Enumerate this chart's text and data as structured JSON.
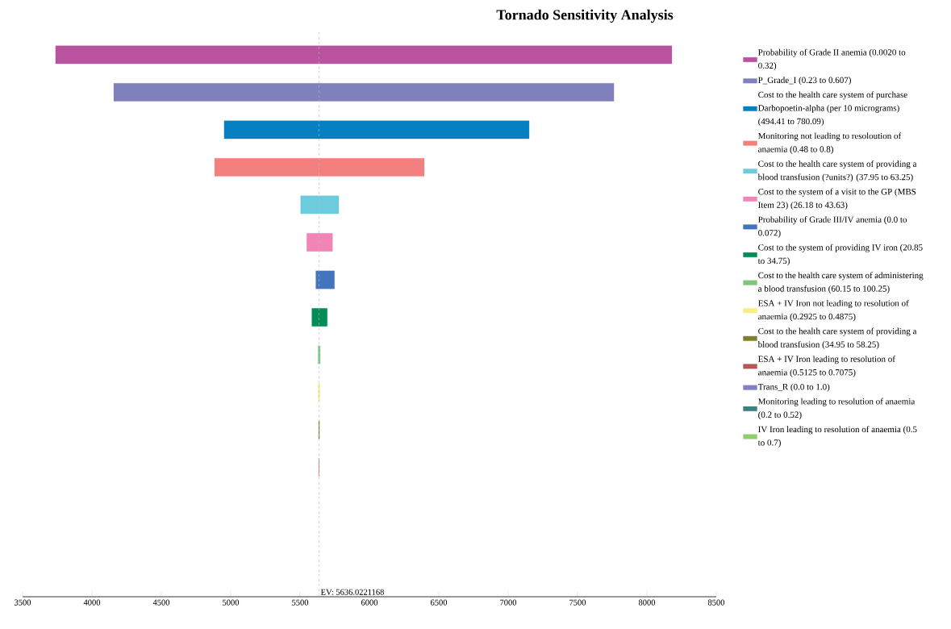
{
  "chart_data": {
    "type": "bar",
    "orientation": "horizontal",
    "title": "Tornado Sensitivity Analysis",
    "categories": [
      null,
      null,
      null,
      null,
      null,
      null,
      null,
      null,
      null,
      null,
      null,
      null,
      null,
      null,
      null
    ],
    "series": [
      {
        "name": "Probability of Grade II anemia (0.0020 to 0.32)",
        "color": "#b9529f",
        "base": [
          3738,
          null,
          null,
          null,
          null,
          null,
          null,
          null,
          null,
          null,
          null,
          null,
          null,
          null,
          null
        ],
        "values": [
          4442,
          null,
          null,
          null,
          null,
          null,
          null,
          null,
          null,
          null,
          null,
          null,
          null,
          null,
          null
        ]
      },
      {
        "name": "P_Grade_I (0.23 to 0.607)",
        "color": "#8080bd",
        "base": [
          null,
          4157,
          null,
          null,
          null,
          null,
          null,
          null,
          null,
          null,
          null,
          null,
          null,
          null,
          null
        ],
        "values": [
          null,
          3605,
          null,
          null,
          null,
          null,
          null,
          null,
          null,
          null,
          null,
          null,
          null,
          null,
          null
        ]
      },
      {
        "name": "Cost to the health care system of purchase Darbopoetin-alpha (per 10 micrograms) (494.41 to 780.09)",
        "color": "#0780c1",
        "base": [
          null,
          null,
          4953,
          null,
          null,
          null,
          null,
          null,
          null,
          null,
          null,
          null,
          null,
          null,
          null
        ],
        "values": [
          null,
          null,
          2198,
          null,
          null,
          null,
          null,
          null,
          null,
          null,
          null,
          null,
          null,
          null,
          null
        ]
      },
      {
        "name": "Monitoring not leading to resoloution of anaemia (0.48 to 0.8)",
        "color": "#f47f7f",
        "base": [
          null,
          null,
          null,
          4884,
          null,
          null,
          null,
          null,
          null,
          null,
          null,
          null,
          null,
          null,
          null
        ],
        "values": [
          null,
          null,
          null,
          1511,
          null,
          null,
          null,
          null,
          null,
          null,
          null,
          null,
          null,
          null,
          null
        ]
      },
      {
        "name": "Cost to the health care system of providing a blood transfusion (?units?) (37.95 to 63.25)",
        "color": "#6ccbdc",
        "base": [
          null,
          null,
          null,
          null,
          5504,
          null,
          null,
          null,
          null,
          null,
          null,
          null,
          null,
          null,
          null
        ],
        "values": [
          null,
          null,
          null,
          null,
          275,
          null,
          null,
          null,
          null,
          null,
          null,
          null,
          null,
          null,
          null
        ]
      },
      {
        "name": "Cost to the system of a visit to the GP (MBS Item 23) (26.18 to 43.63)",
        "color": "#f285b6",
        "base": [
          null,
          null,
          null,
          null,
          null,
          5548,
          null,
          null,
          null,
          null,
          null,
          null,
          null,
          null,
          null
        ],
        "values": [
          null,
          null,
          null,
          null,
          null,
          186,
          null,
          null,
          null,
          null,
          null,
          null,
          null,
          null,
          null
        ]
      },
      {
        "name": "Probability of Grade III/IV anemia (0.0 to 0.072)",
        "color": "#4474bb",
        "base": [
          null,
          null,
          null,
          null,
          null,
          null,
          5614,
          null,
          null,
          null,
          null,
          null,
          null,
          null,
          null
        ],
        "values": [
          null,
          null,
          null,
          null,
          null,
          null,
          134,
          null,
          null,
          null,
          null,
          null,
          null,
          null,
          null
        ]
      },
      {
        "name": "Cost to the system of providing IV iron (20.85 to 34.75)",
        "color": "#048c57",
        "base": [
          null,
          null,
          null,
          null,
          null,
          null,
          null,
          5585,
          null,
          null,
          null,
          null,
          null,
          null,
          null
        ],
        "values": [
          null,
          null,
          null,
          null,
          null,
          null,
          null,
          111,
          null,
          null,
          null,
          null,
          null,
          null,
          null
        ]
      },
      {
        "name": "Cost to the health care system of administering a blood transfusion (60.15 to 100.25)",
        "color": "#7fc47f",
        "base": [
          null,
          null,
          null,
          null,
          null,
          null,
          null,
          null,
          5630,
          null,
          null,
          null,
          null,
          null,
          null
        ],
        "values": [
          null,
          null,
          null,
          null,
          null,
          null,
          null,
          null,
          15,
          null,
          null,
          null,
          null,
          null,
          null
        ]
      },
      {
        "name": "ESA + IV Iron not leading to resolution of anaemia (0.2925 to 0.4875)",
        "color": "#f9ee7e",
        "base": [
          null,
          null,
          null,
          null,
          null,
          null,
          null,
          null,
          null,
          5632,
          null,
          null,
          null,
          null,
          null
        ],
        "values": [
          null,
          null,
          null,
          null,
          null,
          null,
          null,
          null,
          null,
          10,
          null,
          null,
          null,
          null,
          null
        ]
      },
      {
        "name": "Cost to the health care system of providing a blood transfusion (34.95 to 58.25)",
        "color": "#7f7f30",
        "base": [
          null,
          null,
          null,
          null,
          null,
          null,
          null,
          null,
          null,
          null,
          5634,
          null,
          null,
          null,
          null
        ],
        "values": [
          null,
          null,
          null,
          null,
          null,
          null,
          null,
          null,
          null,
          null,
          6,
          null,
          null,
          null,
          null
        ]
      },
      {
        "name": "ESA + IV Iron leading to resolution of anaemia (0.5125 to 0.7075)",
        "color": "#b25858",
        "base": [
          null,
          null,
          null,
          null,
          null,
          null,
          null,
          null,
          null,
          null,
          null,
          5635,
          null,
          null,
          null
        ],
        "values": [
          null,
          null,
          null,
          null,
          null,
          null,
          null,
          null,
          null,
          null,
          null,
          3,
          null,
          null,
          null
        ]
      },
      {
        "name": "Trans_R (0.0 to 1.0)",
        "color": "#8080c8",
        "values": [
          null,
          null,
          null,
          null,
          null,
          null,
          null,
          null,
          null,
          null,
          null,
          null,
          null,
          null,
          null
        ]
      },
      {
        "name": "Monitoring leading to resolution of anaemia (0.2 to 0.52)",
        "color": "#3e807f",
        "values": [
          null,
          null,
          null,
          null,
          null,
          null,
          null,
          null,
          null,
          null,
          null,
          null,
          null,
          null,
          null
        ]
      },
      {
        "name": "IV Iron leading to resolution of anaemia (0.5 to 0.7)",
        "color": "#8fd06a",
        "values": [
          null,
          null,
          null,
          null,
          null,
          null,
          null,
          null,
          null,
          null,
          null,
          null,
          null,
          null,
          null
        ]
      }
    ],
    "xlim": [
      3500,
      8500
    ],
    "xticks": [
      3500,
      4000,
      4500,
      5000,
      5500,
      6000,
      6500,
      7000,
      7500,
      8000,
      8500
    ],
    "ref_lines": [
      {
        "axis": "x",
        "value": 5636.0221168,
        "label": "EV: 5636.0221168",
        "color": "#bbbbbb",
        "line_style": "dashed"
      }
    ],
    "legend": "right"
  }
}
